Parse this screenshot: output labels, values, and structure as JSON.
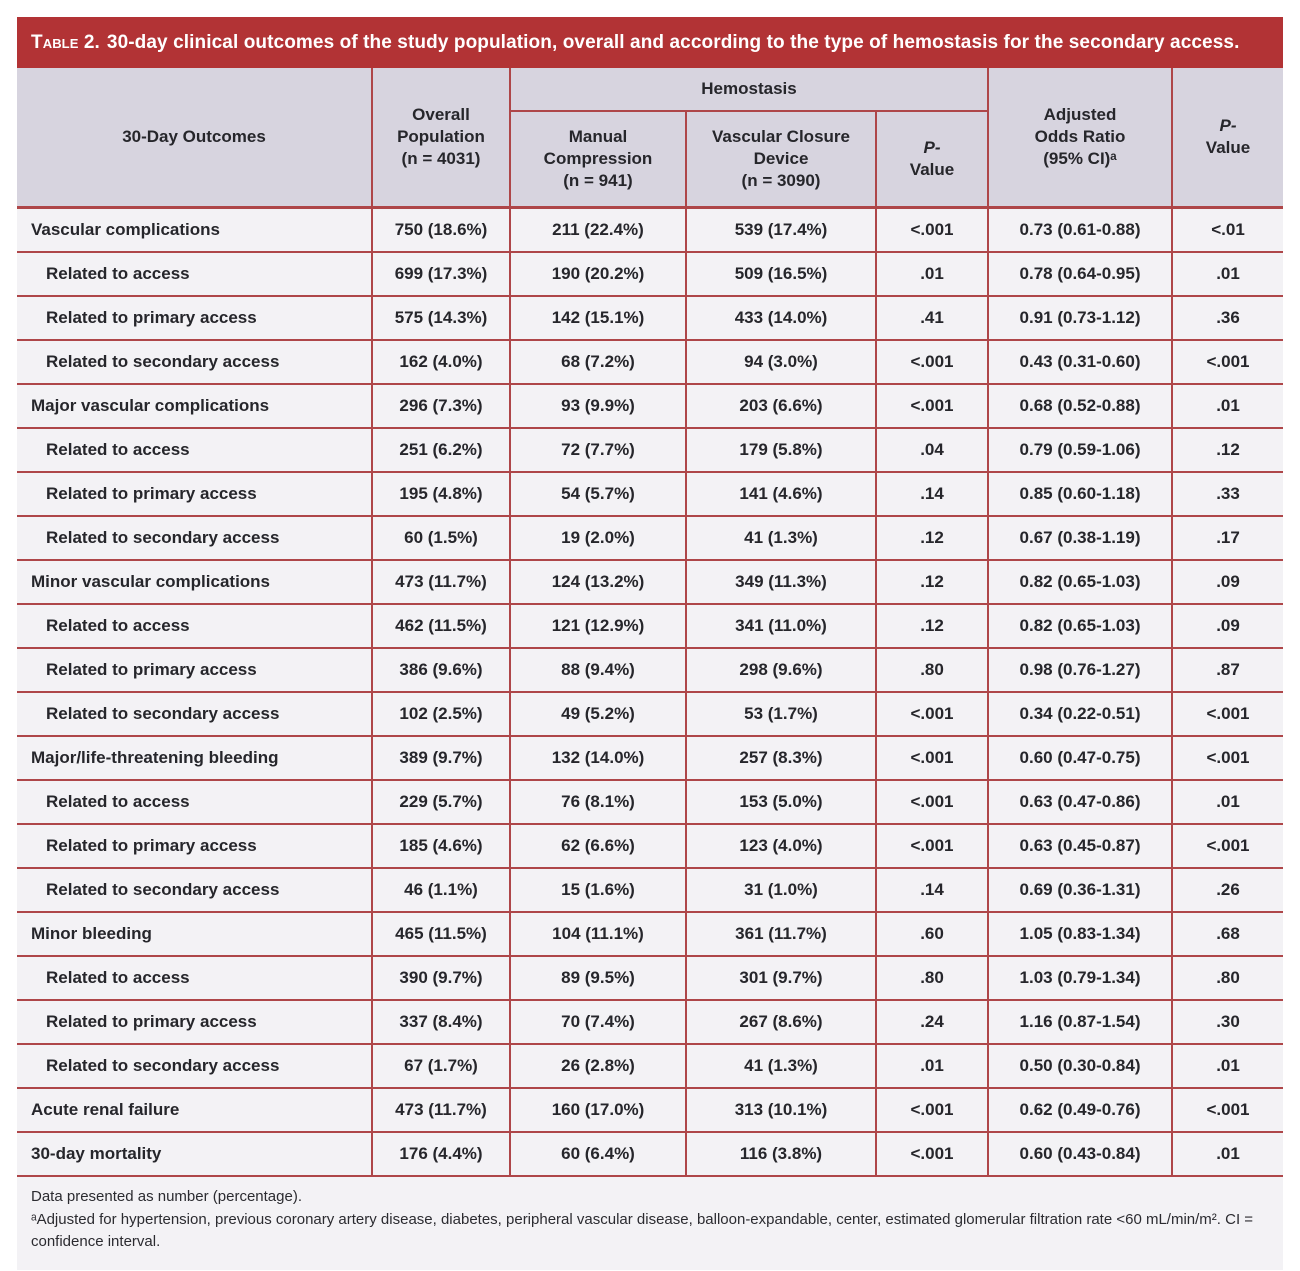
{
  "title": {
    "prefix": "Table 2.",
    "text": "30-day clinical outcomes of the study population, overall and according to the type of hemostasis for the secondary access."
  },
  "colors": {
    "accent_red": "#b23335",
    "grid_red": "#ae4649",
    "header_bg": "#d7d4df",
    "row_bg": "#f3f2f5",
    "title_text": "#ffffff",
    "body_text": "#26262b"
  },
  "table": {
    "headers": {
      "outcomes": "30-Day Outcomes",
      "overall_lines": [
        "Overall",
        "Population",
        "(n = 4031)"
      ],
      "hemostasis_group": "Hemostasis",
      "manual_lines": [
        "Manual",
        "Compression",
        "(n = 941)"
      ],
      "vcd_lines": [
        "Vascular Closure",
        "Device",
        "(n = 3090)"
      ],
      "p_italic": "P-",
      "p_rest": "Value",
      "adjusted_lines": [
        "Adjusted",
        "Odds Ratio",
        "(95% CI)ᵃ"
      ]
    },
    "rows": [
      {
        "label": "Vascular complications",
        "indent": false,
        "overall": "750 (18.6%)",
        "manual": "211 (22.4%)",
        "vcd": "539 (17.4%)",
        "p_hemostasis": "<.001",
        "odds_ratio": "0.73 (0.61-0.88)",
        "p_adjusted": "<.01"
      },
      {
        "label": "Related to access",
        "indent": true,
        "overall": "699 (17.3%)",
        "manual": "190 (20.2%)",
        "vcd": "509 (16.5%)",
        "p_hemostasis": ".01",
        "odds_ratio": "0.78 (0.64-0.95)",
        "p_adjusted": ".01"
      },
      {
        "label": "Related to primary access",
        "indent": true,
        "overall": "575 (14.3%)",
        "manual": "142 (15.1%)",
        "vcd": "433 (14.0%)",
        "p_hemostasis": ".41",
        "odds_ratio": "0.91 (0.73-1.12)",
        "p_adjusted": ".36"
      },
      {
        "label": "Related to secondary access",
        "indent": true,
        "overall": "162 (4.0%)",
        "manual": "68 (7.2%)",
        "vcd": "94 (3.0%)",
        "p_hemostasis": "<.001",
        "odds_ratio": "0.43 (0.31-0.60)",
        "p_adjusted": "<.001"
      },
      {
        "label": "Major vascular complications",
        "indent": false,
        "overall": "296 (7.3%)",
        "manual": "93 (9.9%)",
        "vcd": "203 (6.6%)",
        "p_hemostasis": "<.001",
        "odds_ratio": "0.68 (0.52-0.88)",
        "p_adjusted": ".01"
      },
      {
        "label": "Related to access",
        "indent": true,
        "overall": "251 (6.2%)",
        "manual": "72 (7.7%)",
        "vcd": "179 (5.8%)",
        "p_hemostasis": ".04",
        "odds_ratio": "0.79 (0.59-1.06)",
        "p_adjusted": ".12"
      },
      {
        "label": "Related to primary access",
        "indent": true,
        "overall": "195 (4.8%)",
        "manual": "54 (5.7%)",
        "vcd": "141 (4.6%)",
        "p_hemostasis": ".14",
        "odds_ratio": "0.85 (0.60-1.18)",
        "p_adjusted": ".33"
      },
      {
        "label": "Related to secondary access",
        "indent": true,
        "overall": "60 (1.5%)",
        "manual": "19 (2.0%)",
        "vcd": "41 (1.3%)",
        "p_hemostasis": ".12",
        "odds_ratio": "0.67 (0.38-1.19)",
        "p_adjusted": ".17"
      },
      {
        "label": "Minor vascular complications",
        "indent": false,
        "overall": "473 (11.7%)",
        "manual": "124 (13.2%)",
        "vcd": "349 (11.3%)",
        "p_hemostasis": ".12",
        "odds_ratio": "0.82 (0.65-1.03)",
        "p_adjusted": ".09"
      },
      {
        "label": "Related to access",
        "indent": true,
        "overall": "462 (11.5%)",
        "manual": "121 (12.9%)",
        "vcd": "341 (11.0%)",
        "p_hemostasis": ".12",
        "odds_ratio": "0.82 (0.65-1.03)",
        "p_adjusted": ".09"
      },
      {
        "label": "Related to primary access",
        "indent": true,
        "overall": "386 (9.6%)",
        "manual": "88 (9.4%)",
        "vcd": "298 (9.6%)",
        "p_hemostasis": ".80",
        "odds_ratio": "0.98 (0.76-1.27)",
        "p_adjusted": ".87"
      },
      {
        "label": "Related to secondary access",
        "indent": true,
        "overall": "102 (2.5%)",
        "manual": "49 (5.2%)",
        "vcd": "53 (1.7%)",
        "p_hemostasis": "<.001",
        "odds_ratio": "0.34 (0.22-0.51)",
        "p_adjusted": "<.001"
      },
      {
        "label": "Major/life-threatening bleeding",
        "indent": false,
        "overall": "389 (9.7%)",
        "manual": "132 (14.0%)",
        "vcd": "257 (8.3%)",
        "p_hemostasis": "<.001",
        "odds_ratio": "0.60 (0.47-0.75)",
        "p_adjusted": "<.001"
      },
      {
        "label": "Related to access",
        "indent": true,
        "overall": "229 (5.7%)",
        "manual": "76 (8.1%)",
        "vcd": "153 (5.0%)",
        "p_hemostasis": "<.001",
        "odds_ratio": "0.63 (0.47-0.86)",
        "p_adjusted": ".01"
      },
      {
        "label": "Related to primary access",
        "indent": true,
        "overall": "185 (4.6%)",
        "manual": "62 (6.6%)",
        "vcd": "123 (4.0%)",
        "p_hemostasis": "<.001",
        "odds_ratio": "0.63 (0.45-0.87)",
        "p_adjusted": "<.001"
      },
      {
        "label": "Related to secondary access",
        "indent": true,
        "overall": "46 (1.1%)",
        "manual": "15 (1.6%)",
        "vcd": "31 (1.0%)",
        "p_hemostasis": ".14",
        "odds_ratio": "0.69 (0.36-1.31)",
        "p_adjusted": ".26"
      },
      {
        "label": "Minor bleeding",
        "indent": false,
        "overall": "465 (11.5%)",
        "manual": "104 (11.1%)",
        "vcd": "361 (11.7%)",
        "p_hemostasis": ".60",
        "odds_ratio": "1.05 (0.83-1.34)",
        "p_adjusted": ".68"
      },
      {
        "label": "Related to access",
        "indent": true,
        "overall": "390 (9.7%)",
        "manual": "89 (9.5%)",
        "vcd": "301 (9.7%)",
        "p_hemostasis": ".80",
        "odds_ratio": "1.03 (0.79-1.34)",
        "p_adjusted": ".80"
      },
      {
        "label": "Related to primary access",
        "indent": true,
        "overall": "337 (8.4%)",
        "manual": "70 (7.4%)",
        "vcd": "267 (8.6%)",
        "p_hemostasis": ".24",
        "odds_ratio": "1.16 (0.87-1.54)",
        "p_adjusted": ".30"
      },
      {
        "label": "Related to secondary access",
        "indent": true,
        "overall": "67 (1.7%)",
        "manual": "26 (2.8%)",
        "vcd": "41 (1.3%)",
        "p_hemostasis": ".01",
        "odds_ratio": "0.50 (0.30-0.84)",
        "p_adjusted": ".01"
      },
      {
        "label": "Acute renal failure",
        "indent": false,
        "overall": "473 (11.7%)",
        "manual": "160 (17.0%)",
        "vcd": "313 (10.1%)",
        "p_hemostasis": "<.001",
        "odds_ratio": "0.62 (0.49-0.76)",
        "p_adjusted": "<.001"
      },
      {
        "label": "30-day mortality",
        "indent": false,
        "overall": "176 (4.4%)",
        "manual": "60 (6.4%)",
        "vcd": "116 (3.8%)",
        "p_hemostasis": "<.001",
        "odds_ratio": "0.60 (0.43-0.84)",
        "p_adjusted": ".01"
      }
    ]
  },
  "footnotes": {
    "line1": "Data presented as number (percentage).",
    "line2": "ᵃAdjusted for hypertension, previous coronary artery disease, diabetes, peripheral vascular disease, balloon-expandable, center, estimated glomerular filtration rate <60 mL/min/m². CI = confidence interval."
  }
}
